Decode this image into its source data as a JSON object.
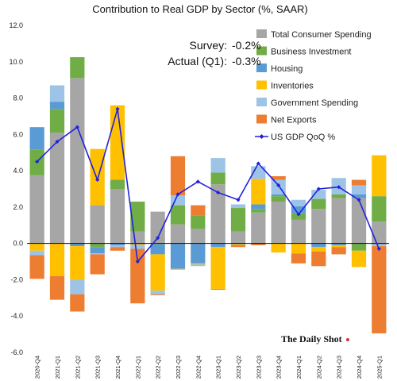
{
  "chart_data": {
    "type": "bar",
    "subtype": "stacked-bar-with-line",
    "title": "Contribution to Real GDP by Sector (%, SAAR)",
    "xlabel": "",
    "ylabel": "",
    "ylim": [
      -6,
      12
    ],
    "yticks": [
      "12.0",
      "10.0",
      "8.0",
      "6.0",
      "4.0",
      "2.0",
      "0.0",
      "-2.0",
      "-4.0",
      "-6.0"
    ],
    "grid": false,
    "legend_position": "top-right",
    "categories": [
      "2020-Q4",
      "2021-Q1",
      "2021-Q2",
      "2021-Q3",
      "2021-Q4",
      "2022-Q1",
      "2022-Q2",
      "2022-Q3",
      "2022-Q4",
      "2023-Q1",
      "2023-Q2",
      "2023-Q3",
      "2023-Q4",
      "2024-Q1",
      "2024-Q2",
      "2024-Q3",
      "2024-Q4",
      "2025-Q1"
    ],
    "series": [
      {
        "name": "Total Consumer Spending",
        "color": "#a6a6a6",
        "values": [
          3.75,
          6.1,
          9.1,
          2.1,
          3.0,
          0.65,
          1.75,
          1.05,
          0.8,
          3.25,
          0.65,
          1.7,
          2.3,
          1.3,
          1.9,
          2.5,
          2.5,
          1.2
        ]
      },
      {
        "name": "Business Investment",
        "color": "#70ad47",
        "values": [
          1.4,
          1.3,
          1.15,
          -0.2,
          0.5,
          1.65,
          -0.05,
          1.05,
          0.75,
          0.65,
          1.3,
          0.2,
          0.3,
          0.35,
          0.55,
          0.2,
          -0.4,
          1.4
        ]
      },
      {
        "name": "Housing",
        "color": "#5b9bd5",
        "values": [
          1.25,
          0.4,
          -0.15,
          -0.35,
          -0.1,
          -0.05,
          -0.55,
          -1.4,
          -1.1,
          -0.2,
          -0.05,
          0.25,
          0.1,
          0.4,
          -0.2,
          -0.1,
          0.2,
          -0.05
        ]
      },
      {
        "name": "Inventories",
        "color": "#ffc000",
        "values": [
          -0.4,
          -1.8,
          -1.85,
          3.1,
          4.1,
          -0.05,
          -2.0,
          -0.05,
          -0.05,
          -2.3,
          -0.05,
          1.4,
          -0.5,
          -0.55,
          -0.25,
          -0.1,
          -0.9,
          2.25
        ]
      },
      {
        "name": "Government Spending",
        "color": "#9dc3e6",
        "values": [
          -0.25,
          0.9,
          -0.8,
          -0.05,
          -0.1,
          -0.2,
          -0.2,
          0.55,
          -0.1,
          0.8,
          0.2,
          0.7,
          0.8,
          0.35,
          0.5,
          0.9,
          0.5,
          -0.1
        ]
      },
      {
        "name": "Net Exports",
        "color": "#ed7d31",
        "values": [
          -1.3,
          -1.3,
          -0.95,
          -1.1,
          -0.2,
          -3.0,
          -0.05,
          2.15,
          0.55,
          -0.05,
          -0.1,
          -0.1,
          0.2,
          -0.55,
          -0.8,
          -0.4,
          0.3,
          -4.8
        ]
      }
    ],
    "line": {
      "name": "US GDP QoQ %",
      "color": "#2222dd",
      "values": [
        4.5,
        5.6,
        6.4,
        3.5,
        7.4,
        -1.0,
        0.3,
        2.7,
        3.4,
        2.8,
        2.4,
        4.4,
        3.2,
        1.6,
        3.0,
        3.1,
        2.4,
        -0.3
      ]
    },
    "annotations": [
      {
        "label": "Survey:",
        "value": "-0.2%"
      },
      {
        "label": "Actual (Q1):",
        "value": "-0.3%"
      }
    ],
    "source": "The Daily Shot"
  }
}
